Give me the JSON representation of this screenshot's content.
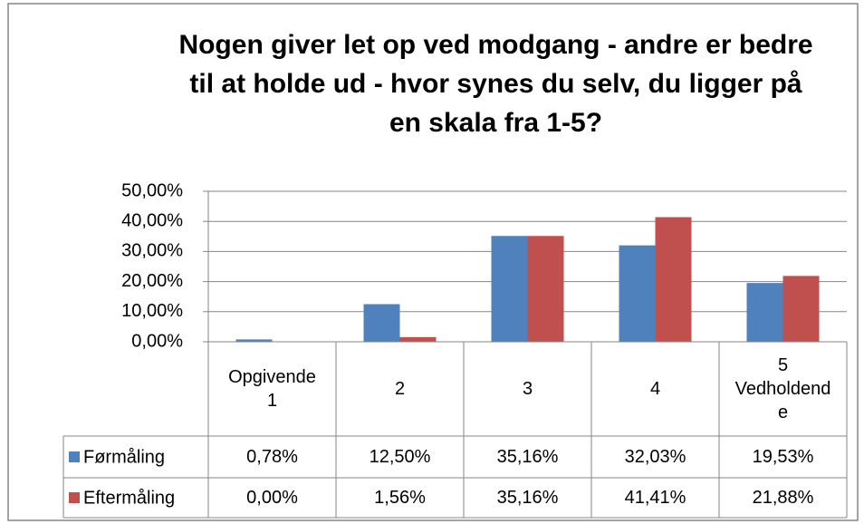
{
  "chart_data": {
    "type": "bar",
    "title": "Nogen giver let op ved modgang - andre er bedre til at holde ud - hvor synes du selv, du ligger på en skala fra 1-5?",
    "categories": [
      "Opgivende 1",
      "2",
      "3",
      "4",
      "5 Vedholdende"
    ],
    "series": [
      {
        "name": "Førmåling",
        "color": "#4f81bd",
        "values": [
          0.78,
          12.5,
          35.16,
          32.03,
          19.53
        ],
        "value_labels": [
          "0,78%",
          "12,50%",
          "35,16%",
          "32,03%",
          "19,53%"
        ]
      },
      {
        "name": "Eftermåling",
        "color": "#c0504d",
        "values": [
          0,
          1.56,
          35.16,
          41.41,
          21.88
        ],
        "value_labels": [
          "0,00%",
          "1,56%",
          "35,16%",
          "41,41%",
          "21,88%"
        ]
      }
    ],
    "ylim": [
      0,
      50
    ],
    "yticks": [
      {
        "value": 0,
        "label": "0,00%"
      },
      {
        "value": 10,
        "label": "10,00%"
      },
      {
        "value": 20,
        "label": "20,00%"
      },
      {
        "value": 30,
        "label": "30,00%"
      },
      {
        "value": 40,
        "label": "40,00%"
      },
      {
        "value": 50,
        "label": "50,00%"
      }
    ],
    "grid": true
  }
}
